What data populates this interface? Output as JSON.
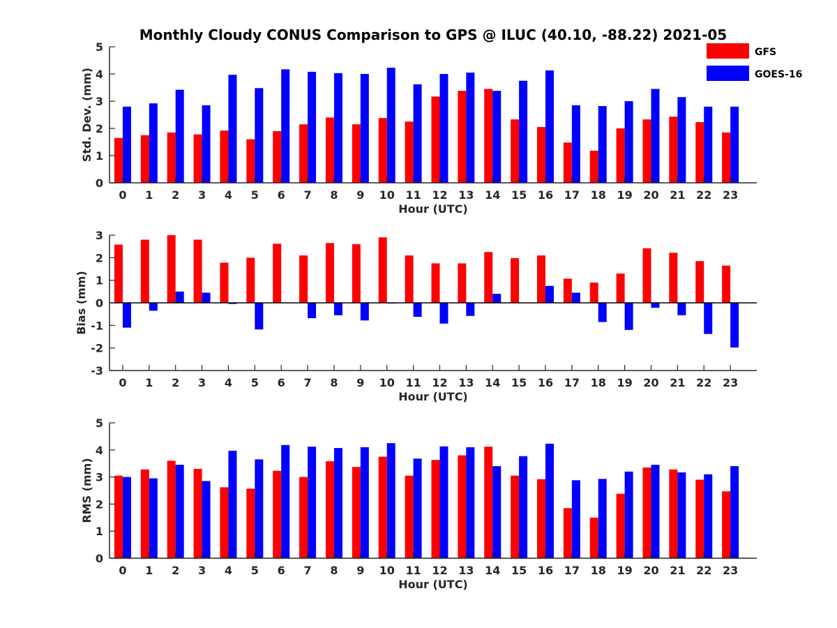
{
  "title": "Monthly Cloudy CONUS Comparison to GPS @ ILUC (40.10, -88.22) 2021-05",
  "legend": [
    {
      "name": "GFS",
      "color": "#ff0000"
    },
    {
      "name": "GOES-16",
      "color": "#0000ff"
    }
  ],
  "chart_data": [
    {
      "type": "bar",
      "title": "Monthly Cloudy CONUS Comparison to GPS @ ILUC (40.10, -88.22) 2021-05",
      "xlabel": "Hour (UTC)",
      "ylabel": "Std. Dev. (mm)",
      "ylim": [
        0,
        5
      ],
      "yticks": [
        0,
        1,
        2,
        3,
        4,
        5
      ],
      "categories": [
        "0",
        "1",
        "2",
        "3",
        "4",
        "5",
        "6",
        "7",
        "8",
        "9",
        "10",
        "11",
        "12",
        "13",
        "14",
        "15",
        "16",
        "17",
        "18",
        "19",
        "20",
        "21",
        "22",
        "23"
      ],
      "series": [
        {
          "name": "GFS",
          "color": "#ff0000",
          "values": [
            1.65,
            1.75,
            1.85,
            1.78,
            1.92,
            1.6,
            1.9,
            2.15,
            2.4,
            2.15,
            2.38,
            2.25,
            3.17,
            3.38,
            3.45,
            2.33,
            2.05,
            1.48,
            1.18,
            2.0,
            2.33,
            2.43,
            2.23,
            1.85
          ]
        },
        {
          "name": "GOES-16",
          "color": "#0000ff",
          "values": [
            2.8,
            2.92,
            3.42,
            2.85,
            3.97,
            3.48,
            4.17,
            4.08,
            4.03,
            4.0,
            4.23,
            3.62,
            4.0,
            4.05,
            3.38,
            3.75,
            4.13,
            2.85,
            2.82,
            3.0,
            3.45,
            3.15,
            2.8,
            2.8
          ]
        }
      ]
    },
    {
      "type": "bar",
      "xlabel": "Hour (UTC)",
      "ylabel": "Bias (mm)",
      "ylim": [
        -3,
        3
      ],
      "yticks": [
        -3,
        -2,
        -1,
        0,
        1,
        2,
        3
      ],
      "zero_line": true,
      "categories": [
        "0",
        "1",
        "2",
        "3",
        "4",
        "5",
        "6",
        "7",
        "8",
        "9",
        "10",
        "11",
        "12",
        "13",
        "14",
        "15",
        "16",
        "17",
        "18",
        "19",
        "20",
        "21",
        "22",
        "23"
      ],
      "series": [
        {
          "name": "GFS",
          "color": "#ff0000",
          "values": [
            2.58,
            2.8,
            3.0,
            2.8,
            1.78,
            2.0,
            2.62,
            2.1,
            2.65,
            2.6,
            2.9,
            2.1,
            1.75,
            1.75,
            2.25,
            1.98,
            2.1,
            1.07,
            0.9,
            1.3,
            2.42,
            2.22,
            1.85,
            1.65
          ]
        },
        {
          "name": "GOES-16",
          "color": "#0000ff",
          "values": [
            -1.1,
            -0.35,
            0.5,
            0.45,
            -0.05,
            -1.18,
            0.0,
            -0.68,
            -0.55,
            -0.78,
            -0.03,
            -0.62,
            -0.92,
            -0.58,
            0.4,
            0.0,
            0.75,
            0.45,
            -0.85,
            -1.2,
            -0.22,
            -0.55,
            -1.38,
            -1.98
          ]
        }
      ]
    },
    {
      "type": "bar",
      "xlabel": "Hour (UTC)",
      "ylabel": "RMS (mm)",
      "ylim": [
        0,
        5
      ],
      "yticks": [
        0,
        1,
        2,
        3,
        4,
        5
      ],
      "categories": [
        "0",
        "1",
        "2",
        "3",
        "4",
        "5",
        "6",
        "7",
        "8",
        "9",
        "10",
        "11",
        "12",
        "13",
        "14",
        "15",
        "16",
        "17",
        "18",
        "19",
        "20",
        "21",
        "22",
        "23"
      ],
      "series": [
        {
          "name": "GFS",
          "color": "#ff0000",
          "values": [
            3.05,
            3.28,
            3.6,
            3.3,
            2.62,
            2.57,
            3.23,
            3.0,
            3.58,
            3.37,
            3.75,
            3.05,
            3.63,
            3.8,
            4.12,
            3.05,
            2.92,
            1.85,
            1.5,
            2.38,
            3.35,
            3.28,
            2.9,
            2.47
          ]
        },
        {
          "name": "GOES-16",
          "color": "#0000ff",
          "values": [
            3.0,
            2.95,
            3.45,
            2.85,
            3.97,
            3.65,
            4.18,
            4.12,
            4.07,
            4.1,
            4.25,
            3.68,
            4.13,
            4.1,
            3.4,
            3.77,
            4.23,
            2.88,
            2.93,
            3.2,
            3.45,
            3.17,
            3.1,
            3.4
          ]
        }
      ]
    }
  ]
}
